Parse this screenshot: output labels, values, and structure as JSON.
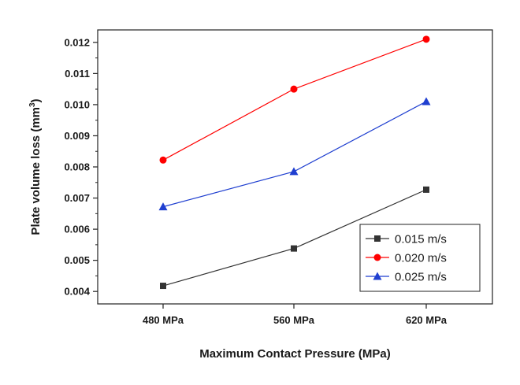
{
  "chart_data": {
    "type": "line",
    "title": "",
    "xlabel": "Maximum Contact Pressure (MPa)",
    "ylabel": "Plate volume loss (mm",
    "ylabel_sup": "3",
    "ylabel_end": ")",
    "categories": [
      "480 MPa",
      "560 MPa",
      "620 MPa"
    ],
    "ylim": [
      0.0036,
      0.0124
    ],
    "yticks": [
      0.004,
      0.005,
      0.006,
      0.007,
      0.008,
      0.009,
      0.01,
      0.011,
      0.012
    ],
    "ytick_labels": [
      "0.004",
      "0.005",
      "0.006",
      "0.007",
      "0.008",
      "0.009",
      "0.010",
      "0.011",
      "0.012"
    ],
    "grid": false,
    "legend_position": "bottom-right",
    "series": [
      {
        "name": "0.015 m/s",
        "values": [
          0.00418,
          0.00538,
          0.00727
        ],
        "color": "#333333",
        "marker": "square"
      },
      {
        "name": "0.020 m/s",
        "values": [
          0.00822,
          0.0105,
          0.0121
        ],
        "color": "#ff0000",
        "marker": "circle"
      },
      {
        "name": "0.025 m/s",
        "values": [
          0.00672,
          0.00785,
          0.0101
        ],
        "color": "#1f3fd0",
        "marker": "triangle"
      }
    ]
  }
}
